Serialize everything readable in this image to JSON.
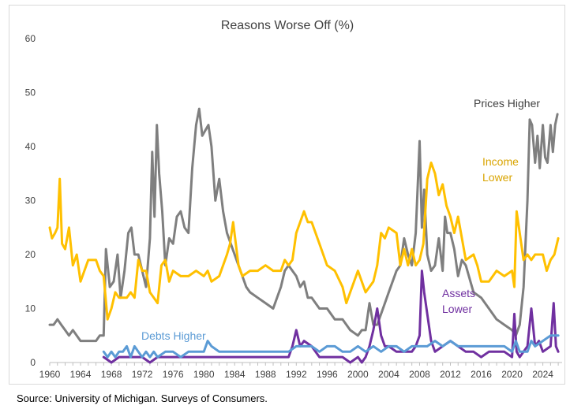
{
  "source": "Source: University of Michigan. Surveys of Consumers.",
  "chart_data": {
    "type": "line",
    "title": "Reasons Worse Off (%)",
    "xlabel": "",
    "ylabel": "",
    "xlim": [
      1960,
      2026.5
    ],
    "ylim": [
      0,
      60
    ],
    "y_ticks": [
      0,
      10,
      20,
      30,
      40,
      50,
      60
    ],
    "x_ticks": [
      1960,
      1964,
      1968,
      1972,
      1976,
      1980,
      1984,
      1988,
      1992,
      1996,
      2000,
      2004,
      2008,
      2012,
      2016,
      2020,
      2024
    ],
    "grid": false,
    "legend": "inline labels",
    "series": [
      {
        "name": "Prices Higher",
        "color": "#7f7f7f",
        "label_lines": [
          "Prices Higher"
        ],
        "x": [
          1960,
          1960.5,
          1961,
          1961.5,
          1962,
          1962.5,
          1963,
          1964,
          1965,
          1966,
          1966.5,
          1967,
          1967.3,
          1967.8,
          1968.3,
          1968.8,
          1969.2,
          1969.7,
          1970.2,
          1970.6,
          1971,
          1971.5,
          1972,
          1972.5,
          1973,
          1973.3,
          1973.6,
          1973.9,
          1974.2,
          1974.6,
          1975,
          1975.5,
          1976,
          1976.5,
          1977,
          1977.5,
          1978,
          1978.5,
          1979,
          1979.4,
          1979.8,
          1980.2,
          1980.6,
          1981,
          1981.5,
          1982,
          1982.5,
          1983,
          1983.5,
          1984,
          1984.5,
          1985,
          1985.5,
          1986,
          1987,
          1988,
          1989,
          1990,
          1990.5,
          1991,
          1991.5,
          1992,
          1992.5,
          1993,
          1993.5,
          1994,
          1995,
          1996,
          1997,
          1998,
          1999,
          2000,
          2000.5,
          2001,
          2001.5,
          2002,
          2002.5,
          2003,
          2004,
          2005,
          2005.5,
          2006,
          2006.5,
          2007,
          2007.5,
          2008,
          2008.3,
          2008.6,
          2009,
          2009.5,
          2010,
          2010.5,
          2011,
          2011.3,
          2011.6,
          2012,
          2012.5,
          2013,
          2013.5,
          2014,
          2015,
          2016,
          2017,
          2018,
          2019,
          2020,
          2020.5,
          2021,
          2021.5,
          2022,
          2022.3,
          2022.6,
          2023,
          2023.3,
          2023.6,
          2024,
          2024.3,
          2024.6,
          2025,
          2025.3,
          2025.6,
          2025.9
        ],
        "values": [
          7,
          7,
          8,
          7,
          6,
          5,
          6,
          4,
          4,
          4,
          5,
          5,
          21,
          14,
          15,
          20,
          12,
          17,
          24,
          25,
          20,
          20,
          17,
          14,
          23,
          39,
          27,
          44,
          35,
          28,
          18,
          23,
          22,
          27,
          28,
          25,
          24,
          36,
          44,
          47,
          42,
          43,
          44,
          40,
          30,
          34,
          28,
          24,
          22,
          20,
          18,
          16,
          14,
          13,
          12,
          11,
          10,
          14,
          17,
          18,
          17,
          16,
          14,
          15,
          12,
          12,
          10,
          10,
          8,
          8,
          6,
          5,
          6,
          6,
          11,
          7,
          7,
          9,
          13,
          17,
          18,
          23,
          20,
          18,
          24,
          41,
          25,
          32,
          20,
          17,
          18,
          23,
          17,
          27,
          24,
          24,
          21,
          16,
          19,
          18,
          13,
          12,
          10,
          8,
          7,
          6,
          5,
          7,
          14,
          30,
          45,
          44,
          37,
          42,
          36,
          44,
          38,
          37,
          44,
          39,
          44,
          46
        ]
      },
      {
        "name": "Income Lower",
        "color": "#ffc000",
        "label_lines": [
          "Income",
          "Lower"
        ],
        "x": [
          1960,
          1960.3,
          1960.7,
          1961,
          1961.3,
          1961.6,
          1962,
          1962.5,
          1963,
          1963.5,
          1964,
          1965,
          1966,
          1966.5,
          1967,
          1967.5,
          1968,
          1968.5,
          1969,
          1970,
          1970.5,
          1971,
          1971.5,
          1972,
          1972.5,
          1973,
          1973.5,
          1974,
          1974.5,
          1975,
          1975.5,
          1976,
          1977,
          1978,
          1979,
          1980,
          1980.5,
          1981,
          1982,
          1983,
          1983.4,
          1983.8,
          1984.5,
          1985,
          1986,
          1987,
          1988,
          1989,
          1990,
          1990.5,
          1991,
          1991.5,
          1992,
          1992.5,
          1993,
          1993.5,
          1994,
          1995,
          1996,
          1997,
          1998,
          1998.5,
          1999,
          2000,
          2001,
          2002,
          2002.5,
          2003,
          2003.5,
          2004,
          2005,
          2005.5,
          2006,
          2006.5,
          2007,
          2007.5,
          2008,
          2008.5,
          2009,
          2009.5,
          2010,
          2010.5,
          2011,
          2011.5,
          2012,
          2012.5,
          2013,
          2014,
          2015,
          2015.5,
          2016,
          2017,
          2018,
          2019,
          2020,
          2020.3,
          2020.6,
          2021,
          2021.5,
          2022,
          2022.5,
          2023,
          2024,
          2024.5,
          2025,
          2025.5,
          2026
        ],
        "values": [
          25,
          23,
          24,
          25,
          34,
          22,
          21,
          25,
          18,
          20,
          15,
          19,
          19,
          17,
          16,
          8,
          10,
          13,
          12,
          12,
          13,
          12,
          19,
          17,
          17,
          13,
          12,
          11,
          18,
          19,
          15,
          17,
          16,
          16,
          17,
          16,
          17,
          15,
          16,
          20,
          22,
          26,
          18,
          16,
          17,
          17,
          18,
          17,
          17,
          19,
          18,
          19,
          24,
          26,
          28,
          26,
          26,
          22,
          18,
          17,
          14,
          11,
          13,
          17,
          13,
          15,
          18,
          24,
          23,
          25,
          24,
          18,
          21,
          18,
          21,
          18,
          19,
          22,
          34,
          37,
          35,
          31,
          33,
          29,
          27,
          24,
          27,
          19,
          20,
          18,
          15,
          15,
          17,
          16,
          17,
          14,
          28,
          24,
          19,
          20,
          19,
          20,
          20,
          17,
          19,
          20,
          23
        ]
      },
      {
        "name": "Assets Lower",
        "color": "#7030a0",
        "label_lines": [
          "Assets",
          "Lower"
        ],
        "x": [
          1967,
          1968,
          1969,
          1970,
          1971,
          1972,
          1973,
          1974,
          1975,
          1976,
          1977,
          1978,
          1979,
          1980,
          1981,
          1982,
          1983,
          1984,
          1985,
          1986,
          1987,
          1988,
          1989,
          1990,
          1991,
          1991.5,
          1992,
          1992.5,
          1993,
          1994,
          1995,
          1996,
          1997,
          1998,
          1999,
          2000,
          2000.5,
          2001,
          2001.5,
          2002,
          2002.5,
          2003,
          2003.5,
          2004,
          2005,
          2006,
          2007,
          2007.5,
          2008,
          2008.3,
          2008.6,
          2009,
          2009.5,
          2010,
          2011,
          2012,
          2013,
          2014,
          2015,
          2016,
          2017,
          2018,
          2019,
          2020,
          2020.3,
          2020.6,
          2021,
          2022,
          2022.5,
          2023,
          2023.5,
          2024,
          2025,
          2025.4,
          2025.7,
          2026
        ],
        "values": [
          1,
          0,
          1,
          1,
          1,
          1,
          0,
          1,
          1,
          1,
          1,
          1,
          1,
          1,
          1,
          1,
          1,
          1,
          1,
          1,
          1,
          1,
          1,
          1,
          1,
          3,
          6,
          3,
          4,
          3,
          1,
          1,
          1,
          1,
          0,
          1,
          0,
          1,
          3,
          6,
          10,
          5,
          3,
          3,
          2,
          2,
          2,
          3,
          5,
          17,
          13,
          9,
          4,
          2,
          3,
          4,
          3,
          2,
          2,
          1,
          2,
          2,
          2,
          1,
          9,
          2,
          1,
          3,
          10,
          3,
          4,
          2,
          3,
          11,
          3,
          2
        ]
      },
      {
        "name": "Debts Higher",
        "color": "#5b9bd5",
        "label_lines": [
          "Debts Higher"
        ],
        "x": [
          1967,
          1967.5,
          1968,
          1968.5,
          1969,
          1969.5,
          1970,
          1970.5,
          1971,
          1971.5,
          1972,
          1972.5,
          1973,
          1973.5,
          1974,
          1975,
          1976,
          1977,
          1978,
          1979,
          1980,
          1980.5,
          1981,
          1982,
          1983,
          1984,
          1985,
          1986,
          1987,
          1988,
          1989,
          1990,
          1991,
          1992,
          1993,
          1994,
          1995,
          1996,
          1997,
          1998,
          1999,
          2000,
          2001,
          2002,
          2003,
          2004,
          2005,
          2006,
          2007,
          2008,
          2009,
          2010,
          2011,
          2012,
          2013,
          2014,
          2015,
          2016,
          2017,
          2018,
          2019,
          2020,
          2020.5,
          2021,
          2022,
          2022.5,
          2023,
          2024,
          2025,
          2026
        ],
        "values": [
          2,
          1,
          2,
          1,
          2,
          2,
          3,
          1,
          3,
          2,
          1,
          2,
          1,
          2,
          1,
          2,
          2,
          1,
          2,
          2,
          2,
          4,
          3,
          2,
          2,
          2,
          2,
          2,
          2,
          2,
          2,
          2,
          2,
          3,
          3,
          3,
          2,
          3,
          3,
          2,
          2,
          3,
          2,
          3,
          2,
          3,
          3,
          2,
          3,
          3,
          3,
          4,
          3,
          4,
          3,
          3,
          3,
          3,
          3,
          3,
          3,
          2,
          4,
          2,
          2,
          4,
          3,
          4,
          5,
          5
        ]
      }
    ]
  }
}
